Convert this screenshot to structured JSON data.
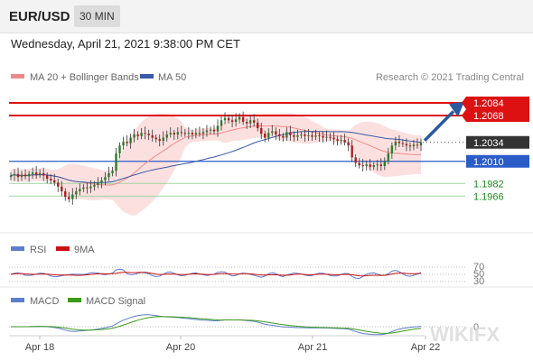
{
  "header": {
    "symbol": "EUR/USD",
    "timeframe": "30 MIN"
  },
  "datetime": "Wednesday, April 21, 2021 9:38:00 PM CET",
  "legend": {
    "ma20_label": "MA 20 + Bollinger Bands",
    "ma50_label": "MA 50",
    "copyright": "Research © 2021 Trading Central"
  },
  "colors": {
    "resistance": "#dd1111",
    "support": "#2a5cc8",
    "green_level": "#1f8a1f",
    "current": "#333333",
    "ma20": "#f08a8a",
    "ma50": "#3a5aa8",
    "bb_fill": "#fbd5d5",
    "arrow": "#2b5aa0"
  },
  "chart_data": [
    {
      "type": "candlestick",
      "x_labels": [
        "Apr 18",
        "Apr 20",
        "Apr 21",
        "Apr 22"
      ],
      "ylim": [
        1.194,
        1.21
      ],
      "levels": [
        {
          "label": "1.2084",
          "value": 1.2084,
          "kind": "resistance"
        },
        {
          "label": "1.2068",
          "value": 1.2068,
          "kind": "resistance"
        },
        {
          "label": "1.2034",
          "value": 1.2034,
          "kind": "current"
        },
        {
          "label": "1.2010",
          "value": 1.201,
          "kind": "support"
        },
        {
          "label": "1.1982",
          "value": 1.1982,
          "kind": "target"
        },
        {
          "label": "1.1966",
          "value": 1.1966,
          "kind": "target"
        }
      ],
      "series": [
        {
          "name": "MA 20 + Bollinger Bands"
        },
        {
          "name": "MA 50"
        }
      ],
      "close": [
        1.1992,
        1.1994,
        1.199,
        1.1993,
        1.1991,
        1.1994,
        1.1996,
        1.1993,
        1.1995,
        1.1992,
        1.1988,
        1.1986,
        1.1983,
        1.1978,
        1.1972,
        1.1965,
        1.1962,
        1.1968,
        1.1972,
        1.1975,
        1.1977,
        1.1976,
        1.1978,
        1.198,
        1.1983,
        1.1986,
        1.199,
        1.1995,
        1.1998,
        1.202,
        1.203,
        1.2035,
        1.2033,
        1.204,
        1.2044,
        1.2042,
        1.2046,
        1.2045,
        1.2043,
        1.204,
        1.2038,
        1.2036,
        1.204,
        1.2044,
        1.2046,
        1.2044,
        1.2047,
        1.2046,
        1.2045,
        1.2046,
        1.2044,
        1.2046,
        1.2045,
        1.2047,
        1.2049,
        1.205,
        1.2048,
        1.2055,
        1.2062,
        1.2065,
        1.2062,
        1.206,
        1.2063,
        1.2066,
        1.206,
        1.2058,
        1.2062,
        1.2059,
        1.2052,
        1.2045,
        1.204,
        1.2046,
        1.2048,
        1.2044,
        1.2042,
        1.204,
        1.2047,
        1.2043,
        1.2041,
        1.2043,
        1.2044,
        1.2042,
        1.2043,
        1.2041,
        1.2043,
        1.2042,
        1.204,
        1.2041,
        1.204,
        1.2038,
        1.2036,
        1.2037,
        1.2034,
        1.203,
        1.2015,
        1.2008,
        1.2005,
        1.2004,
        1.2006,
        1.2003,
        1.2005,
        1.2006,
        1.2004,
        1.201,
        1.202,
        1.203,
        1.2035,
        1.2033,
        1.2032,
        1.203,
        1.2029,
        1.2031,
        1.203,
        1.2034
      ],
      "rsi": {
        "levels": [
          70,
          50,
          30
        ]
      },
      "macd": {
        "zero_label": "0"
      }
    }
  ],
  "lower_panels": {
    "rsi_label": "RSI",
    "rsi_ma_label": "9MA",
    "rsi_levels": [
      "70",
      "50",
      "30"
    ],
    "macd_label": "MACD",
    "macd_signal_label": "MACD Signal",
    "macd_zero": "0"
  },
  "watermark": "WIKIFX"
}
